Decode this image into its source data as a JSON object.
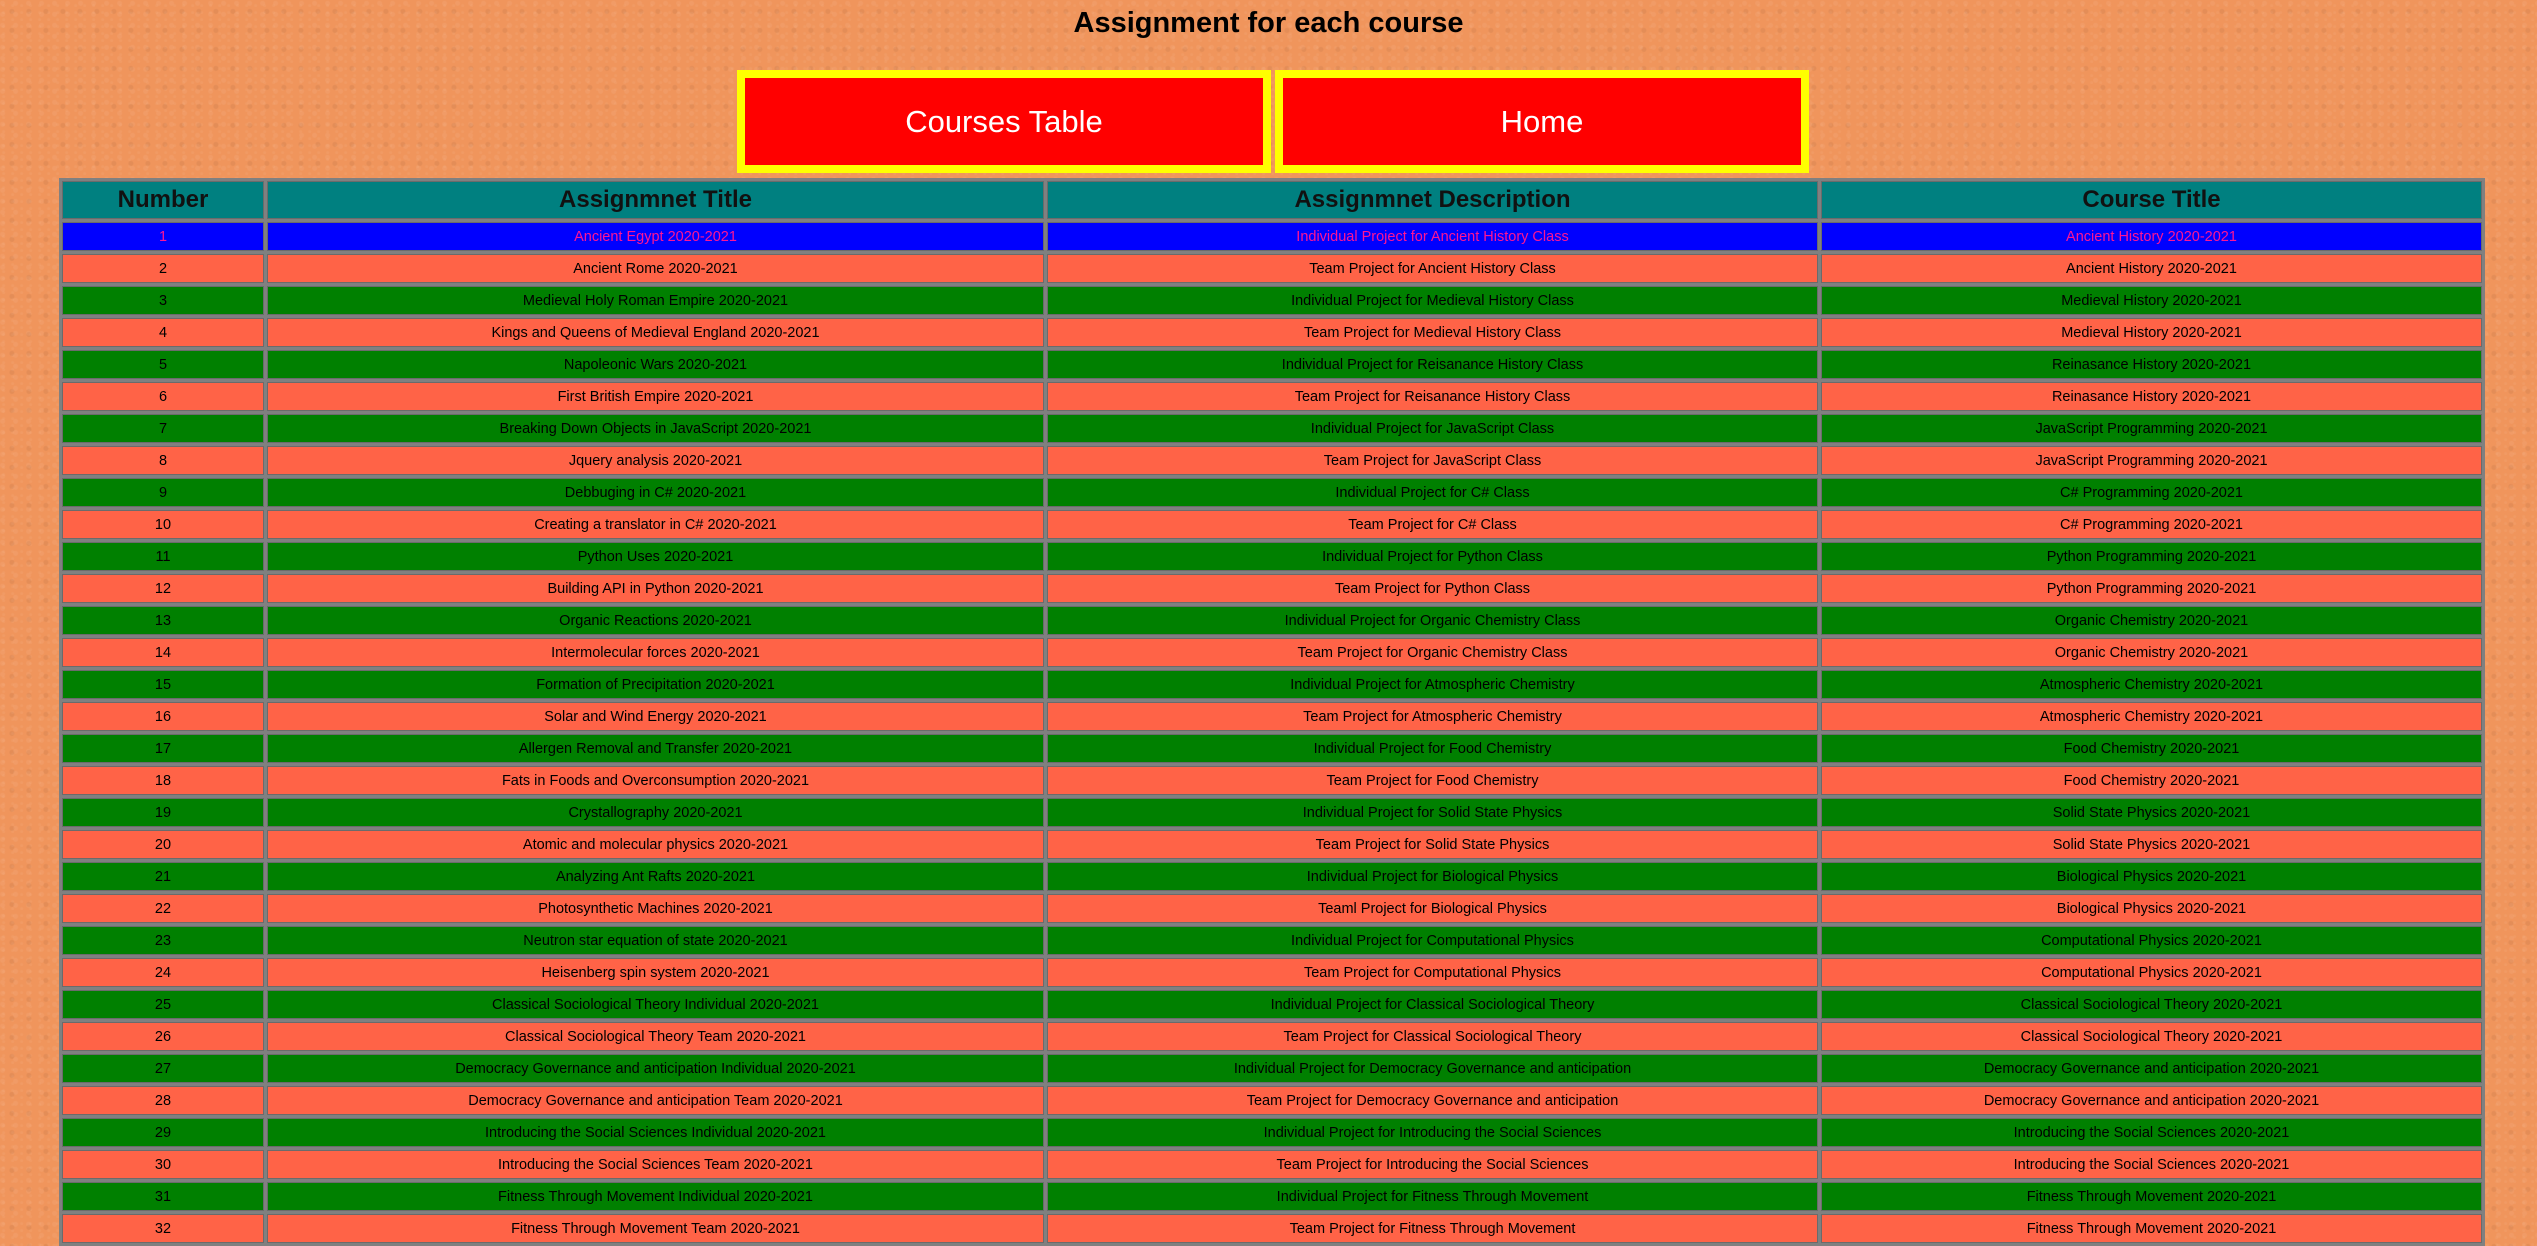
{
  "page": {
    "title": "Assignment for each course"
  },
  "nav": {
    "courses_label": "Courses Table",
    "home_label": "Home"
  },
  "colors": {
    "background": "#f0955c",
    "button_fill": "#ff0000",
    "button_border": "#ffff00",
    "header_fill": "#008080",
    "selected_row": "#0000ff",
    "selected_text": "#ff1493",
    "odd_row": "#008000",
    "even_row": "#ff6347"
  },
  "table": {
    "headers": [
      "Number",
      "Assignmnet Title",
      "Assignmnet Description",
      "Course Title"
    ],
    "rows": [
      [
        "1",
        "Ancient Egypt 2020-2021",
        "Individual Project for Ancient History Class",
        "Ancient History 2020-2021"
      ],
      [
        "2",
        "Ancient Rome 2020-2021",
        "Team Project for Ancient History Class",
        "Ancient History 2020-2021"
      ],
      [
        "3",
        "Medieval Holy Roman Empire 2020-2021",
        "Individual Project for Medieval History Class",
        "Medieval History 2020-2021"
      ],
      [
        "4",
        "Kings and Queens of Medieval England 2020-2021",
        "Team Project for Medieval History Class",
        "Medieval History 2020-2021"
      ],
      [
        "5",
        "Napoleonic Wars 2020-2021",
        "Individual Project for Reisanance History Class",
        "Reinasance History 2020-2021"
      ],
      [
        "6",
        "First British Empire 2020-2021",
        "Team Project for Reisanance History Class",
        "Reinasance History 2020-2021"
      ],
      [
        "7",
        "Breaking Down Objects in JavaScript 2020-2021",
        "Individual Project for JavaScript Class",
        "JavaScript Programming 2020-2021"
      ],
      [
        "8",
        "Jquery analysis 2020-2021",
        "Team Project for JavaScript Class",
        "JavaScript Programming 2020-2021"
      ],
      [
        "9",
        "Debbuging in C# 2020-2021",
        "Individual Project for C# Class",
        "C# Programming 2020-2021"
      ],
      [
        "10",
        "Creating a translator in C# 2020-2021",
        "Team Project for C# Class",
        "C# Programming 2020-2021"
      ],
      [
        "11",
        "Python Uses 2020-2021",
        "Individual Project for Python Class",
        "Python Programming 2020-2021"
      ],
      [
        "12",
        "Building API in Python 2020-2021",
        "Team Project for Python Class",
        "Python Programming 2020-2021"
      ],
      [
        "13",
        "Organic Reactions 2020-2021",
        "Individual Project for Organic Chemistry Class",
        "Organic Chemistry 2020-2021"
      ],
      [
        "14",
        "Intermolecular forces 2020-2021",
        "Team Project for Organic Chemistry Class",
        "Organic Chemistry 2020-2021"
      ],
      [
        "15",
        "Formation of Precipitation 2020-2021",
        "Individual Project for Atmospheric Chemistry",
        "Atmospheric Chemistry 2020-2021"
      ],
      [
        "16",
        "Solar and Wind Energy 2020-2021",
        "Team Project for Atmospheric Chemistry",
        "Atmospheric Chemistry 2020-2021"
      ],
      [
        "17",
        "Allergen Removal and Transfer 2020-2021",
        "Individual Project for Food Chemistry",
        "Food Chemistry 2020-2021"
      ],
      [
        "18",
        "Fats in Foods and Overconsumption 2020-2021",
        "Team Project for Food Chemistry",
        "Food Chemistry 2020-2021"
      ],
      [
        "19",
        "Crystallography 2020-2021",
        "Individual Project for Solid State Physics",
        "Solid State Physics 2020-2021"
      ],
      [
        "20",
        "Atomic and molecular physics 2020-2021",
        "Team Project for Solid State Physics",
        "Solid State Physics 2020-2021"
      ],
      [
        "21",
        "Analyzing Ant Rafts 2020-2021",
        "Individual Project for Biological Physics",
        "Biological Physics 2020-2021"
      ],
      [
        "22",
        "Photosynthetic Machines 2020-2021",
        "Teaml Project for Biological Physics",
        "Biological Physics 2020-2021"
      ],
      [
        "23",
        "Neutron star equation of state 2020-2021",
        "Individual Project for Computational Physics",
        "Computational Physics 2020-2021"
      ],
      [
        "24",
        "Heisenberg spin system 2020-2021",
        "Team Project for Computational Physics",
        "Computational Physics 2020-2021"
      ],
      [
        "25",
        "Classical Sociological Theory Individual 2020-2021",
        "Individual Project for Classical Sociological Theory",
        "Classical Sociological Theory 2020-2021"
      ],
      [
        "26",
        "Classical Sociological Theory Team 2020-2021",
        "Team Project for Classical Sociological Theory",
        "Classical Sociological Theory 2020-2021"
      ],
      [
        "27",
        "Democracy Governance and anticipation Individual 2020-2021",
        "Individual Project for Democracy Governance and anticipation",
        "Democracy Governance and anticipation 2020-2021"
      ],
      [
        "28",
        "Democracy Governance and anticipation Team 2020-2021",
        "Team Project for Democracy Governance and anticipation",
        "Democracy Governance and anticipation 2020-2021"
      ],
      [
        "29",
        "Introducing the Social Sciences Individual 2020-2021",
        "Individual Project for Introducing the Social Sciences",
        "Introducing the Social Sciences 2020-2021"
      ],
      [
        "30",
        "Introducing the Social Sciences Team 2020-2021",
        "Team Project for Introducing the Social Sciences",
        "Introducing the Social Sciences 2020-2021"
      ],
      [
        "31",
        "Fitness Through Movement Individual 2020-2021",
        "Individual Project for Fitness Through Movement",
        "Fitness Through Movement 2020-2021"
      ],
      [
        "32",
        "Fitness Through Movement Team 2020-2021",
        "Team Project for Fitness Through Movement",
        "Fitness Through Movement 2020-2021"
      ]
    ]
  }
}
